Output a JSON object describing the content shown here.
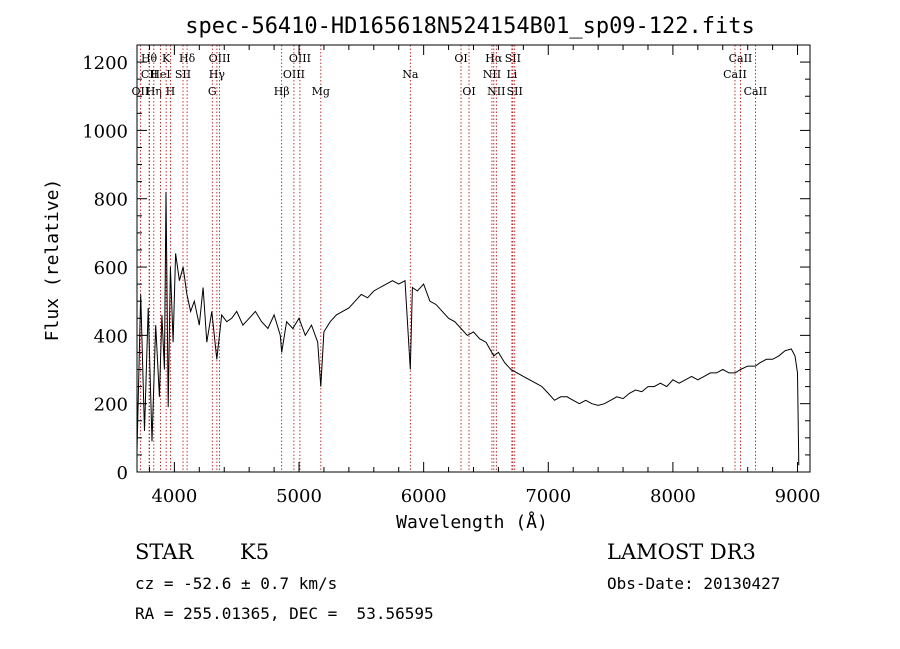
{
  "chart_data": {
    "type": "line",
    "title": "spec-56410-HD165618N524154B01_sp09-122.fits",
    "xlabel": "Wavelength (Å)",
    "ylabel": "Flux (relative)",
    "xlim": [
      3700,
      9100
    ],
    "ylim": [
      0,
      1250
    ],
    "x_ticks": [
      4000,
      5000,
      6000,
      7000,
      8000,
      9000
    ],
    "y_ticks": [
      0,
      200,
      400,
      600,
      800,
      1000,
      1200
    ],
    "x_tick_labels": [
      "4000",
      "5000",
      "6000",
      "7000",
      "8000",
      "9000"
    ],
    "y_tick_labels": [
      "0",
      "200",
      "400",
      "600",
      "800",
      "1000",
      "1200"
    ],
    "grid": false,
    "series": [
      {
        "name": "flux",
        "color": "#000000",
        "x": [
          3700,
          3730,
          3760,
          3790,
          3820,
          3850,
          3880,
          3900,
          3920,
          3933,
          3950,
          3968,
          3990,
          4010,
          4040,
          4070,
          4100,
          4130,
          4160,
          4200,
          4230,
          4260,
          4300,
          4340,
          4380,
          4420,
          4460,
          4500,
          4550,
          4600,
          4650,
          4700,
          4750,
          4800,
          4850,
          4861,
          4900,
          4950,
          5000,
          5050,
          5100,
          5150,
          5175,
          5200,
          5250,
          5300,
          5350,
          5400,
          5450,
          5500,
          5550,
          5600,
          5650,
          5700,
          5750,
          5800,
          5850,
          5893,
          5910,
          5950,
          6000,
          6050,
          6100,
          6150,
          6200,
          6250,
          6300,
          6350,
          6400,
          6450,
          6500,
          6563,
          6600,
          6650,
          6700,
          6750,
          6800,
          6850,
          6900,
          6950,
          7000,
          7050,
          7100,
          7150,
          7200,
          7250,
          7300,
          7350,
          7400,
          7450,
          7500,
          7550,
          7600,
          7650,
          7700,
          7750,
          7800,
          7850,
          7900,
          7950,
          8000,
          8050,
          8100,
          8150,
          8200,
          8250,
          8300,
          8350,
          8400,
          8450,
          8500,
          8542,
          8600,
          8662,
          8700,
          8750,
          8800,
          8850,
          8900,
          8950,
          8980,
          9000,
          9010
        ],
        "y": [
          60,
          520,
          120,
          480,
          90,
          430,
          220,
          460,
          300,
          820,
          190,
          600,
          380,
          640,
          560,
          600,
          520,
          470,
          500,
          430,
          540,
          380,
          470,
          330,
          460,
          440,
          450,
          470,
          430,
          450,
          470,
          440,
          420,
          460,
          400,
          350,
          440,
          420,
          450,
          400,
          430,
          380,
          250,
          410,
          440,
          460,
          470,
          480,
          500,
          520,
          510,
          530,
          540,
          550,
          560,
          550,
          560,
          300,
          540,
          530,
          550,
          500,
          490,
          470,
          450,
          440,
          420,
          400,
          410,
          390,
          380,
          340,
          350,
          320,
          300,
          290,
          280,
          270,
          260,
          250,
          230,
          210,
          220,
          220,
          210,
          200,
          210,
          200,
          195,
          200,
          210,
          220,
          215,
          230,
          240,
          235,
          250,
          250,
          260,
          250,
          270,
          260,
          270,
          280,
          270,
          280,
          290,
          290,
          300,
          290,
          290,
          300,
          310,
          310,
          320,
          330,
          330,
          340,
          355,
          360,
          340,
          290,
          20
        ]
      }
    ],
    "line_markers": [
      {
        "label": "Hθ",
        "x": 3797,
        "row": 1
      },
      {
        "label": "CII",
        "x": 3800,
        "row": 2
      },
      {
        "label": "OII",
        "x": 3727,
        "row": 3
      },
      {
        "label": "Hη",
        "x": 3835,
        "row": 3
      },
      {
        "label": "HeI",
        "x": 3889,
        "row": 2
      },
      {
        "label": "K",
        "x": 3934,
        "row": 1
      },
      {
        "label": "H",
        "x": 3968,
        "row": 3
      },
      {
        "label": "SII",
        "x": 4069,
        "row": 2
      },
      {
        "label": "Hδ",
        "x": 4102,
        "row": 1
      },
      {
        "label": "G",
        "x": 4304,
        "row": 3
      },
      {
        "label": "OIII",
        "x": 4363,
        "row": 1
      },
      {
        "label": "Hγ",
        "x": 4341,
        "row": 2
      },
      {
        "label": "Hβ",
        "x": 4861,
        "row": 3
      },
      {
        "label": "OIII",
        "x": 5007,
        "row": 1
      },
      {
        "label": "OIII",
        "x": 4959,
        "row": 2
      },
      {
        "label": "Mg",
        "x": 5175,
        "row": 3
      },
      {
        "label": "Na",
        "x": 5893,
        "row": 2
      },
      {
        "label": "OI",
        "x": 6300,
        "row": 1
      },
      {
        "label": "OI",
        "x": 6364,
        "row": 3
      },
      {
        "label": "Hα",
        "x": 6563,
        "row": 1
      },
      {
        "label": "NII",
        "x": 6548,
        "row": 2
      },
      {
        "label": "NII",
        "x": 6583,
        "row": 3
      },
      {
        "label": "SII",
        "x": 6716,
        "row": 1
      },
      {
        "label": "Li",
        "x": 6708,
        "row": 2
      },
      {
        "label": "SII",
        "x": 6731,
        "row": 3
      },
      {
        "label": "CaII",
        "x": 8542,
        "row": 1
      },
      {
        "label": "CaII",
        "x": 8498,
        "row": 2
      },
      {
        "label": "CaII",
        "x": 8662,
        "row": 3
      }
    ]
  },
  "info": {
    "object_class": "STAR",
    "subclass": "K5",
    "survey": "LAMOST DR3",
    "redshift": "cz = -52.6 ± 0.7 km/s",
    "obs_date": "Obs-Date: 20130427",
    "coords": "RA = 255.01365, DEC =  53.56595"
  }
}
